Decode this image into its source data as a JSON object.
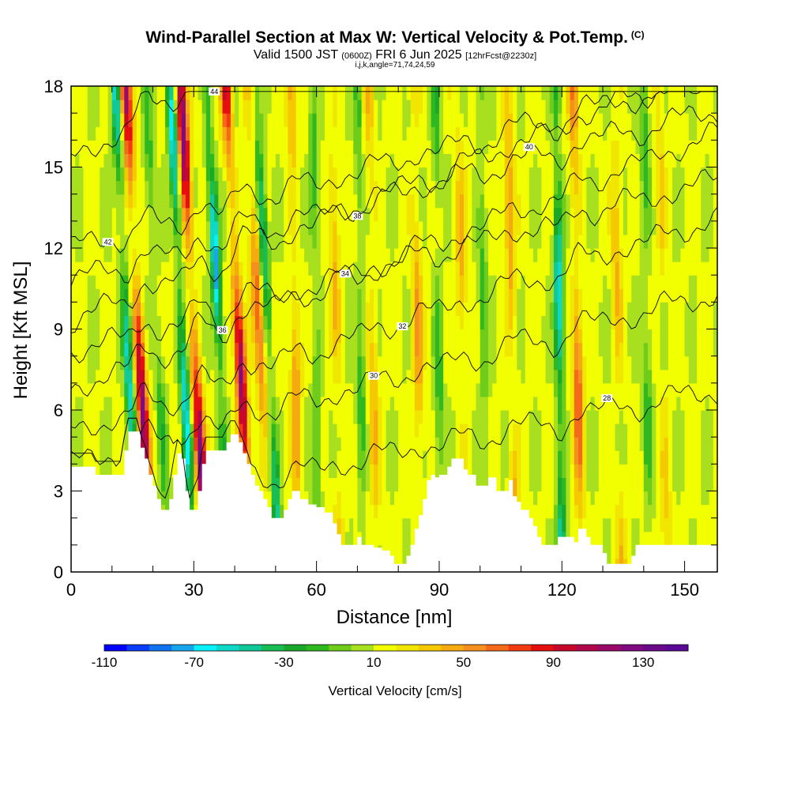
{
  "title": {
    "main": "Wind-Parallel Section at Max W: Vertical Velocity & Pot.Temp.",
    "copyright": "(C)",
    "valid_prefix": "Valid 1500 JST",
    "valid_utc": "(0600Z)",
    "valid_date": "FRI 6 Jun 2025",
    "forecast": "[12hrFcst@2230z]",
    "indices": "i,j,k,angle=71,74,24,59"
  },
  "chart_data": {
    "type": "heatmap",
    "xlabel": "Distance [nm]",
    "ylabel": "Height [Kft MSL]",
    "xlim": [
      0,
      158
    ],
    "ylim": [
      0,
      18
    ],
    "x_ticks": [
      0,
      30,
      60,
      90,
      120,
      150
    ],
    "y_ticks": [
      0,
      3,
      6,
      9,
      12,
      15,
      18
    ],
    "colorbar": {
      "title": "Vertical Velocity [cm/s]",
      "min": -110,
      "max": 150,
      "step": 10,
      "tick_labels": [
        "-110",
        "-70",
        "-30",
        "10",
        "50",
        "90",
        "130"
      ],
      "colors": [
        "#0000ff",
        "#0a3dfa",
        "#1273f0",
        "#17a5ee",
        "#08f0fa",
        "#0fd8c8",
        "#10c898",
        "#18bd55",
        "#1aa82a",
        "#30b820",
        "#6fcc1a",
        "#a8e020",
        "#f2ff00",
        "#f0e600",
        "#f5c800",
        "#f5ab10",
        "#f59020",
        "#f56a1a",
        "#f03c10",
        "#e60f0f",
        "#c8082a",
        "#b0084a",
        "#9a0a68",
        "#800a80",
        "#6a0a8a",
        "#5a0a96"
      ]
    },
    "updrafts": [
      {
        "x": 17.5,
        "peak": 110
      },
      {
        "x": 31,
        "peak": 120
      },
      {
        "x": 42,
        "peak": 110
      },
      {
        "x": 47,
        "peak": 60
      },
      {
        "x": 55,
        "peak": 40
      },
      {
        "x": 65,
        "peak": 30
      },
      {
        "x": 74,
        "peak": 30
      },
      {
        "x": 85,
        "peak": 40
      },
      {
        "x": 96,
        "peak": 30
      },
      {
        "x": 108,
        "peak": 40
      },
      {
        "x": 124,
        "peak": 60
      },
      {
        "x": 134,
        "peak": 30
      },
      {
        "x": 145,
        "peak": 20
      }
    ],
    "downdrafts": [
      {
        "x": 14.5,
        "peak": -70
      },
      {
        "x": 22,
        "peak": -30
      },
      {
        "x": 28,
        "peak": -80
      },
      {
        "x": 37,
        "peak": -90
      },
      {
        "x": 49,
        "peak": -60
      },
      {
        "x": 60,
        "peak": -30
      },
      {
        "x": 71,
        "peak": -30
      },
      {
        "x": 90,
        "peak": -30
      },
      {
        "x": 101,
        "peak": -30
      },
      {
        "x": 119.5,
        "peak": -80
      },
      {
        "x": 141,
        "peak": -30
      }
    ],
    "terrain": [
      [
        0,
        3.9
      ],
      [
        6,
        3.6
      ],
      [
        12,
        3.6
      ],
      [
        13,
        4.5
      ],
      [
        14,
        5.2
      ],
      [
        16,
        5.2
      ],
      [
        17,
        4.6
      ],
      [
        18,
        4.2
      ],
      [
        19,
        3.6
      ],
      [
        20,
        3.2
      ],
      [
        21,
        2.7
      ],
      [
        22,
        2.3
      ],
      [
        23,
        2.3
      ],
      [
        24,
        2.7
      ],
      [
        25,
        3.6
      ],
      [
        26,
        4.4
      ],
      [
        27,
        4.2
      ],
      [
        28,
        3.0
      ],
      [
        29,
        2.3
      ],
      [
        30,
        2.3
      ],
      [
        31,
        3.0
      ],
      [
        32,
        4.0
      ],
      [
        33,
        4.5
      ],
      [
        34,
        4.5
      ],
      [
        37,
        4.5
      ],
      [
        38,
        4.8
      ],
      [
        39,
        5.1
      ],
      [
        40,
        5.1
      ],
      [
        41,
        4.8
      ],
      [
        42,
        4.4
      ],
      [
        43,
        4.0
      ],
      [
        44,
        3.6
      ],
      [
        45,
        3.2
      ],
      [
        46,
        3.0
      ],
      [
        47,
        2.7
      ],
      [
        48,
        2.4
      ],
      [
        49,
        2.0
      ],
      [
        51,
        2.0
      ],
      [
        52,
        2.3
      ],
      [
        53,
        2.7
      ],
      [
        54,
        3.0
      ],
      [
        56,
        2.7
      ],
      [
        58,
        2.5
      ],
      [
        60,
        2.4
      ],
      [
        62,
        2.2
      ],
      [
        64,
        1.8
      ],
      [
        65,
        1.4
      ],
      [
        66,
        1.0
      ],
      [
        69,
        1.0
      ],
      [
        70,
        1.3
      ],
      [
        71,
        1.0
      ],
      [
        73,
        1.0
      ],
      [
        74,
        0.9
      ],
      [
        76,
        0.8
      ],
      [
        78,
        0.6
      ],
      [
        79,
        0.3
      ],
      [
        81,
        0.3
      ],
      [
        82,
        0.6
      ],
      [
        83,
        1.0
      ],
      [
        84,
        1.6
      ],
      [
        85,
        2.1
      ],
      [
        86,
        2.7
      ],
      [
        87,
        3.4
      ],
      [
        88,
        3.6
      ],
      [
        89,
        3.5
      ],
      [
        90,
        3.6
      ],
      [
        92,
        3.9
      ],
      [
        93,
        4.2
      ],
      [
        95,
        4.2
      ],
      [
        96,
        3.8
      ],
      [
        97,
        3.6
      ],
      [
        99,
        3.2
      ],
      [
        101,
        3.2
      ],
      [
        102,
        3.5
      ],
      [
        104,
        3.0
      ],
      [
        106,
        3.0
      ],
      [
        107,
        3.4
      ],
      [
        108,
        2.8
      ],
      [
        109,
        2.6
      ],
      [
        110,
        2.3
      ],
      [
        112,
        2.0
      ],
      [
        113,
        1.7
      ],
      [
        114,
        1.3
      ],
      [
        115,
        1.0
      ],
      [
        118,
        1.0
      ],
      [
        119,
        1.3
      ],
      [
        122,
        1.3
      ],
      [
        123,
        1.1
      ],
      [
        124,
        1.6
      ],
      [
        126,
        1.3
      ],
      [
        127,
        1.0
      ],
      [
        129,
        1.0
      ],
      [
        130,
        0.7
      ],
      [
        131,
        0.3
      ],
      [
        135,
        0.3
      ],
      [
        137,
        0.6
      ],
      [
        138,
        1.0
      ],
      [
        139,
        1.0
      ],
      [
        158,
        1.0
      ]
    ],
    "theta_contours": [
      {
        "label": "28",
        "label_x": 131,
        "h0": 2.0,
        "trend": 0.003
      },
      {
        "label": "30",
        "label_x": 74,
        "h0": 4.0,
        "trend": 0.004
      },
      {
        "label": "32",
        "label_x": 81,
        "h0": 5.2,
        "trend": 0.005
      },
      {
        "label": "34",
        "label_x": 67,
        "h0": 6.8,
        "trend": 0.006
      },
      {
        "label": "36",
        "label_x": 37,
        "h0": 8.2,
        "trend": 0.004
      },
      {
        "label": "38",
        "label_x": 70,
        "h0": 9.3,
        "trend": 0.006
      },
      {
        "label": "40",
        "label_x": 112,
        "h0": 10.8,
        "trend": 0.004
      },
      {
        "label": "42",
        "label_x": 9,
        "h0": 12.0,
        "trend": 0.004
      },
      {
        "label": "44",
        "label_x": 35,
        "h0": 15.2,
        "trend": 0.01
      }
    ]
  }
}
